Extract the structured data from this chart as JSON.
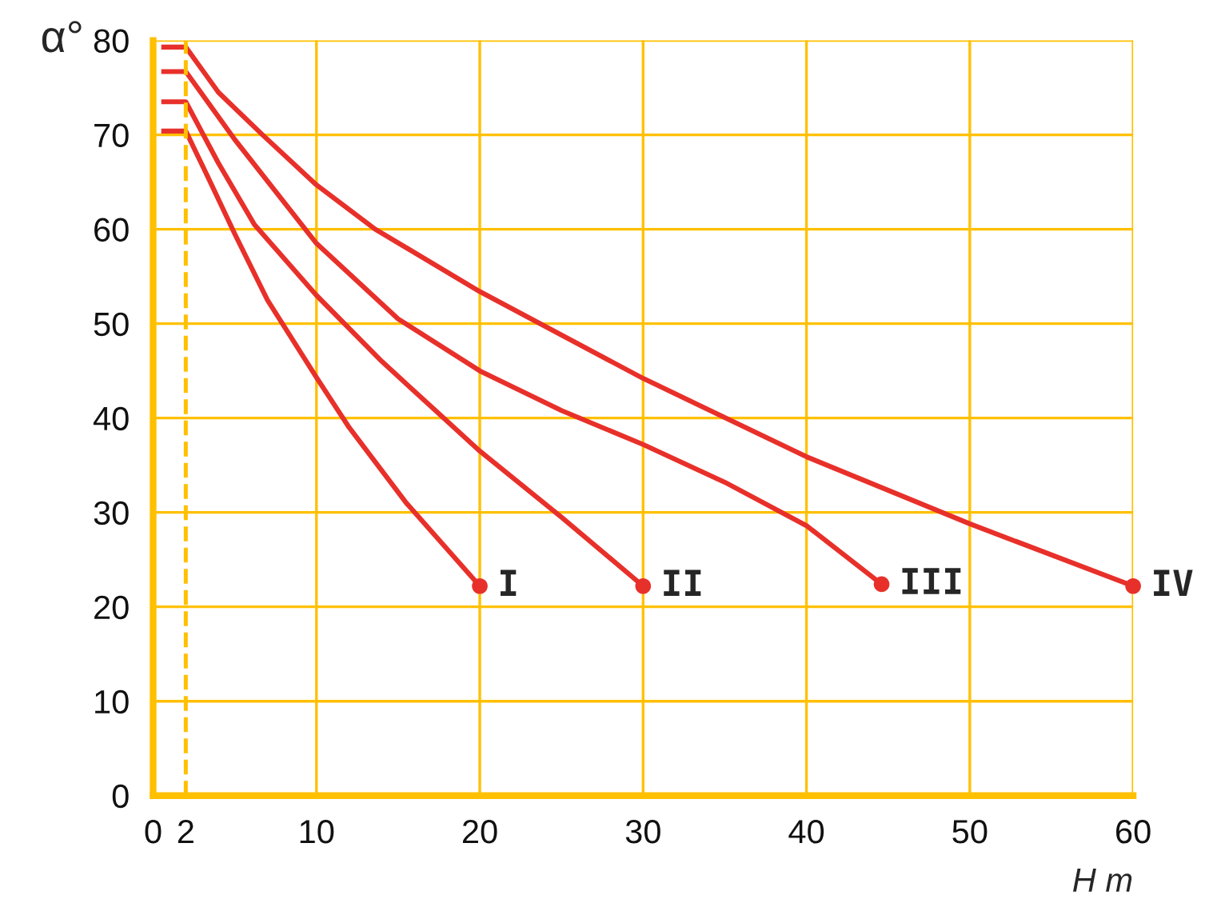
{
  "chart_data": {
    "type": "line",
    "xlabel": "H m",
    "ylabel": "α°",
    "xlim": [
      0,
      60
    ],
    "ylim": [
      0,
      80
    ],
    "xticks": [
      0,
      2,
      10,
      20,
      30,
      40,
      50,
      60
    ],
    "yticks": [
      0,
      10,
      20,
      30,
      40,
      50,
      60,
      70,
      80
    ],
    "grid": true,
    "line_style": "solid",
    "ref_lines": [
      {
        "axis": "x",
        "value": 2,
        "line_style": "dashed",
        "color": "#ffc000"
      }
    ],
    "series": [
      {
        "color": "#e8302a",
        "x": [
          0.5,
          2,
          3.5,
          5,
          7,
          10,
          12,
          15.5,
          20
        ],
        "values": [
          70.4,
          70.4,
          65,
          59.5,
          52.5,
          44.3,
          39,
          31,
          22.2
        ]
      },
      {
        "color": "#e8302a",
        "x": [
          0.5,
          2,
          4,
          6.2,
          10,
          14,
          20,
          25,
          30
        ],
        "values": [
          73.5,
          73.5,
          67,
          60.5,
          53,
          46,
          36.5,
          29.5,
          22.2
        ]
      },
      {
        "color": "#e8302a",
        "x": [
          0.5,
          2,
          5,
          10,
          15,
          20,
          25,
          30,
          35,
          40,
          44.6
        ],
        "values": [
          76.7,
          76.7,
          69.5,
          58.5,
          50.5,
          45,
          40.8,
          37.2,
          33.2,
          28.6,
          22.4
        ]
      },
      {
        "color": "#e8302a",
        "x": [
          0.5,
          2,
          4,
          6.7,
          10,
          13.6,
          20,
          30,
          40,
          50,
          60
        ],
        "values": [
          79.3,
          79.3,
          74.5,
          70,
          64.7,
          60,
          53.4,
          44.2,
          35.9,
          28.8,
          22.2
        ]
      },
      {
        "type": "scatter",
        "marker": "circle",
        "color": "#e8302a",
        "x": [
          20,
          30,
          44.6,
          60
        ],
        "values": [
          22.2,
          22.2,
          22.4,
          22.2
        ]
      }
    ],
    "annotations": [
      {
        "text": "I",
        "x": 20,
        "y": 22.2
      },
      {
        "text": "II",
        "x": 30,
        "y": 22.2
      },
      {
        "text": "III",
        "x": 44.6,
        "y": 22.4
      },
      {
        "text": "IV",
        "x": 60,
        "y": 22.2
      }
    ]
  }
}
